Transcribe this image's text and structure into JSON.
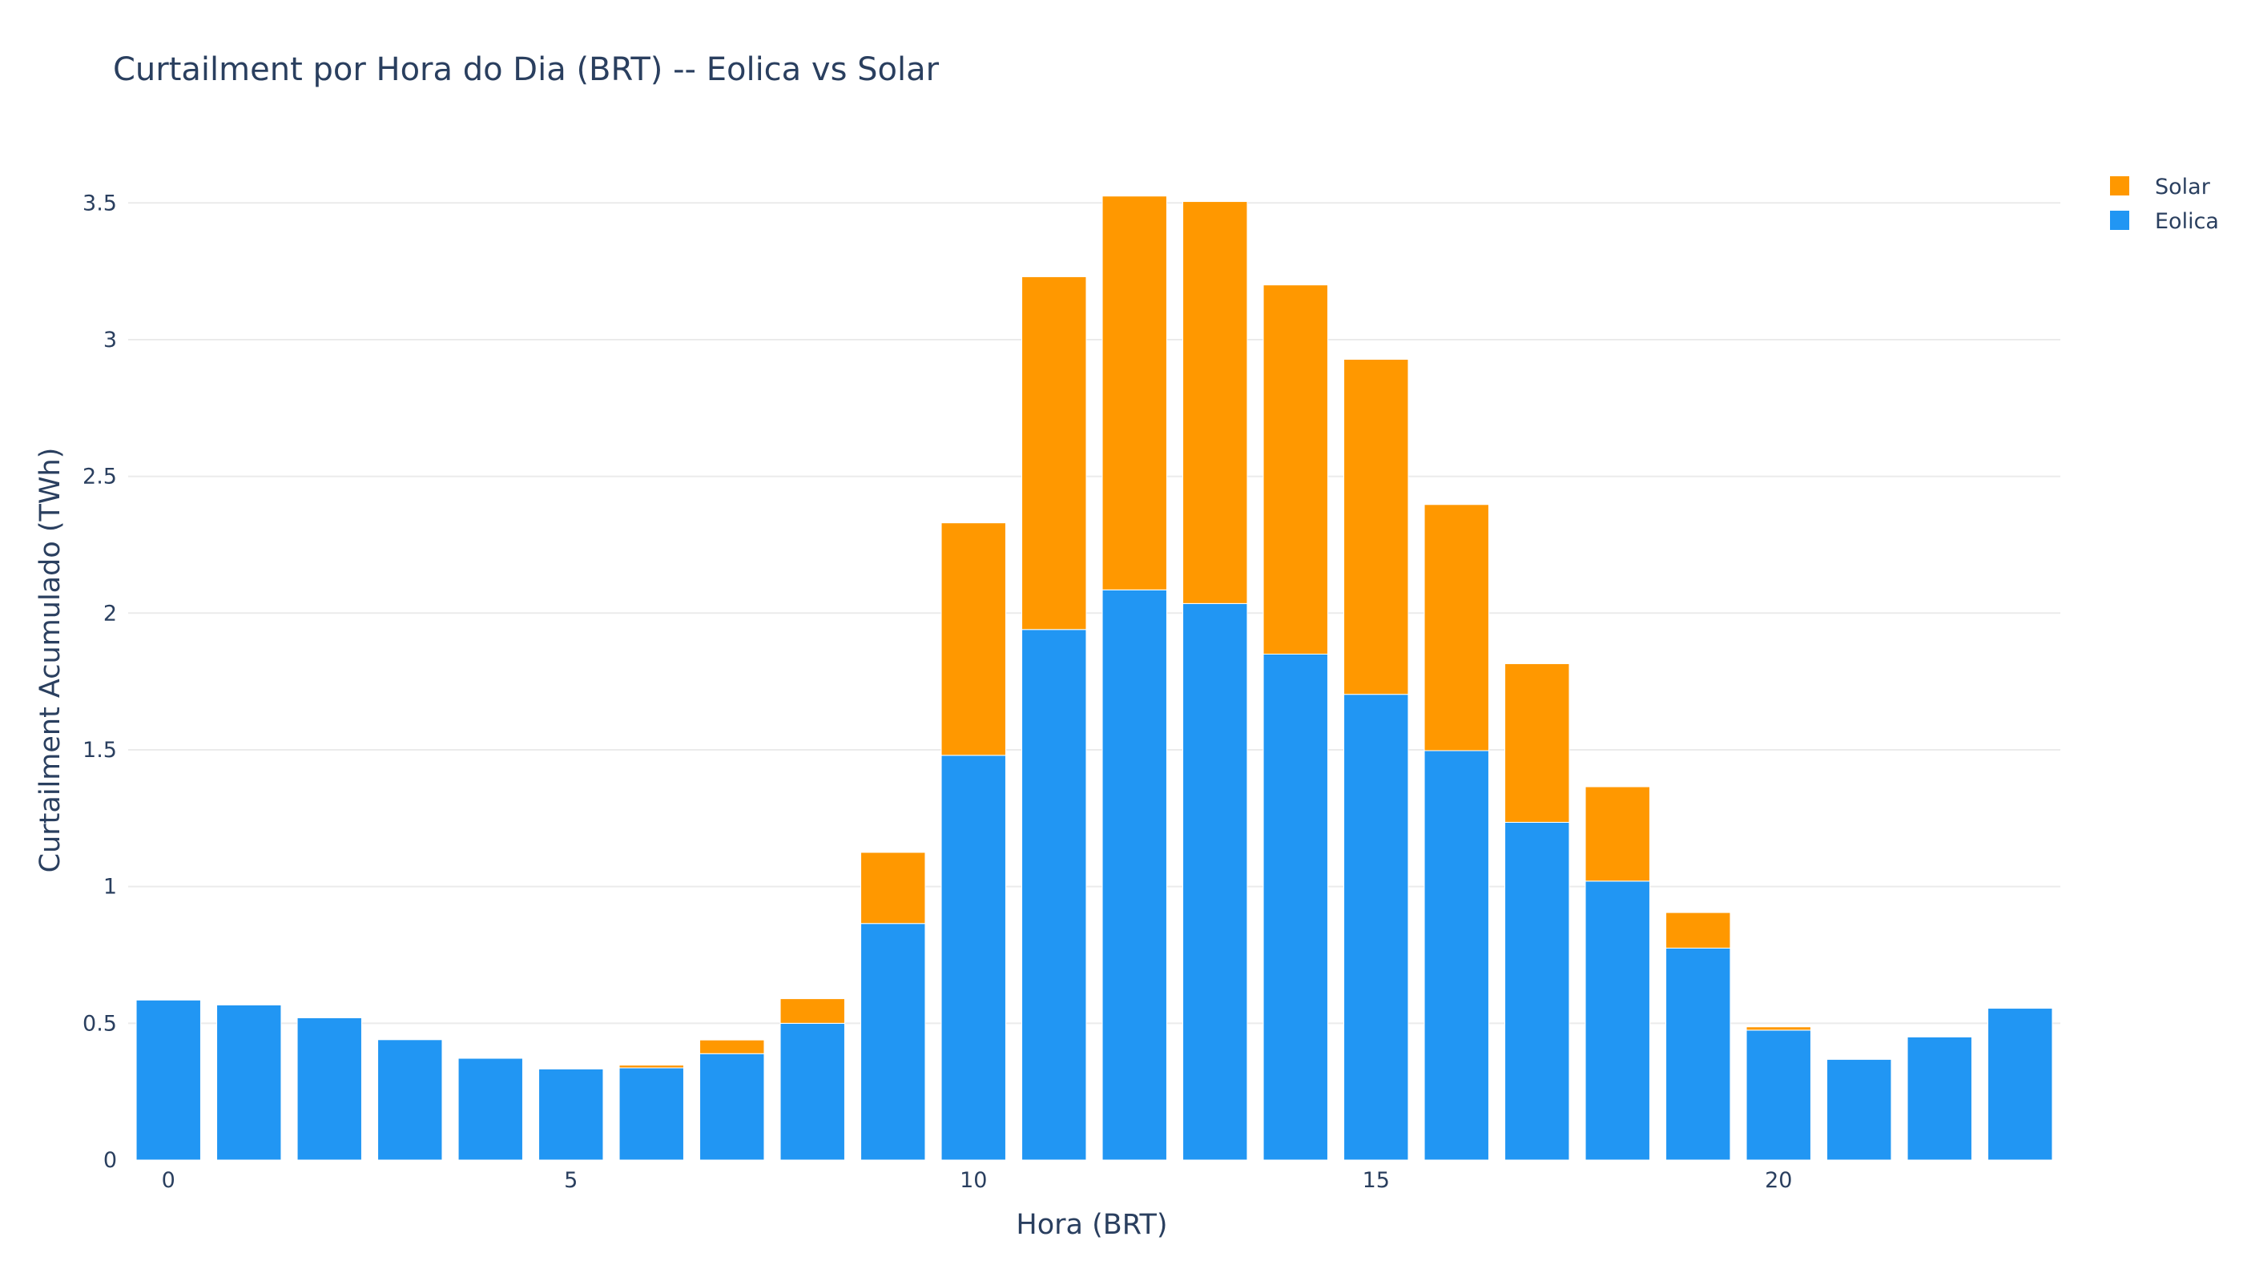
{
  "chart_data": {
    "type": "bar",
    "barmode": "stack",
    "title": "Curtailment por Hora do Dia (BRT) -- Eolica vs Solar",
    "xlabel": "Hora (BRT)",
    "ylabel": "Curtailment Acumulado (TWh)",
    "x": [
      0,
      1,
      2,
      3,
      4,
      5,
      6,
      7,
      8,
      9,
      10,
      11,
      12,
      13,
      14,
      15,
      16,
      17,
      18,
      19,
      20,
      21,
      22,
      23
    ],
    "xticks": [
      0,
      5,
      10,
      15,
      20
    ],
    "xlim": [
      -0.5,
      23.5
    ],
    "ylim": [
      0,
      3.7
    ],
    "yticks": [
      0,
      0.5,
      1,
      1.5,
      2,
      2.5,
      3,
      3.5
    ],
    "ytick_labels": [
      "0",
      "0.5",
      "1",
      "1.5",
      "2",
      "2.5",
      "3",
      "3.5"
    ],
    "grid": true,
    "legend_position": "top-right",
    "series": [
      {
        "name": "Eolica",
        "color": "#2196F3",
        "values": [
          0.585,
          0.567,
          0.52,
          0.44,
          0.372,
          0.333,
          0.337,
          0.389,
          0.5,
          0.865,
          1.48,
          1.94,
          2.085,
          2.035,
          1.85,
          1.703,
          1.497,
          1.235,
          1.02,
          0.775,
          0.475,
          0.368,
          0.45,
          0.555
        ]
      },
      {
        "name": "Solar",
        "color": "#FF9800",
        "values": [
          0,
          0,
          0,
          0,
          0,
          0,
          0.01,
          0.05,
          0.09,
          0.26,
          0.85,
          1.29,
          1.44,
          1.47,
          1.35,
          1.225,
          0.9,
          0.58,
          0.345,
          0.13,
          0.012,
          0,
          0,
          0
        ]
      }
    ],
    "legend_order": [
      "Solar",
      "Eolica"
    ]
  }
}
